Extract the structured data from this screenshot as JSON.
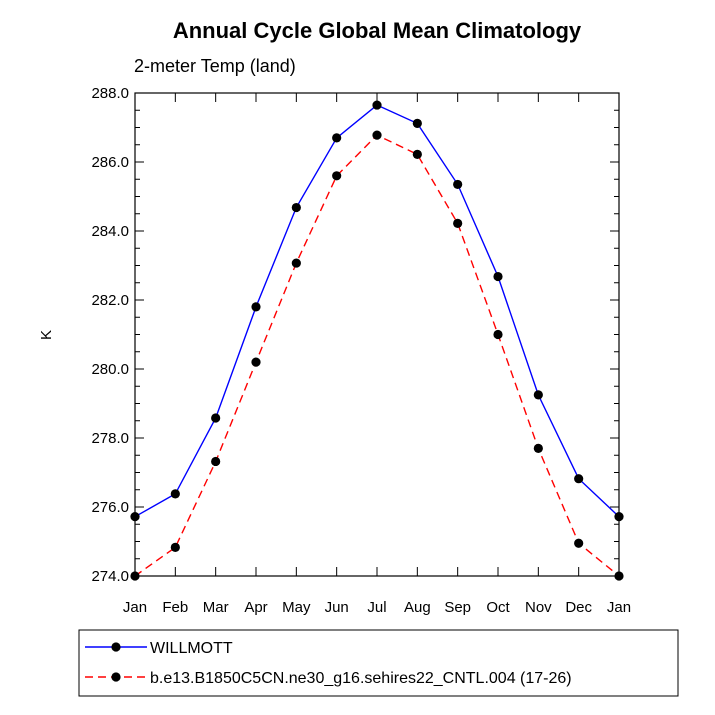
{
  "chart_data": {
    "type": "line",
    "title": "Annual Cycle Global Mean Climatology",
    "subtitle": "2-meter Temp (land)",
    "xlabel": "",
    "ylabel": "K",
    "categories": [
      "Jan",
      "Feb",
      "Mar",
      "Apr",
      "May",
      "Jun",
      "Jul",
      "Aug",
      "Sep",
      "Oct",
      "Nov",
      "Dec",
      "Jan"
    ],
    "yticks": [
      "274.0",
      "276.0",
      "278.0",
      "280.0",
      "282.0",
      "284.0",
      "286.0",
      "288.0"
    ],
    "ylim": [
      274.0,
      288.0
    ],
    "grid": false,
    "legend_position": "bottom",
    "series": [
      {
        "name": "WILLMOTT",
        "color": "#0000ff",
        "dash": "solid",
        "values": [
          275.72,
          276.38,
          278.58,
          281.8,
          284.68,
          286.7,
          287.65,
          287.12,
          285.35,
          282.68,
          279.25,
          276.82,
          275.72
        ]
      },
      {
        "name": "b.e13.B1850C5CN.ne30_g16.sehires22_CNTL.004 (17-26)",
        "color": "#ff0000",
        "dash": "dashed",
        "values": [
          274.0,
          274.83,
          277.32,
          280.2,
          283.07,
          285.6,
          286.78,
          286.22,
          284.22,
          281.0,
          277.7,
          274.95,
          274.0
        ]
      }
    ]
  }
}
